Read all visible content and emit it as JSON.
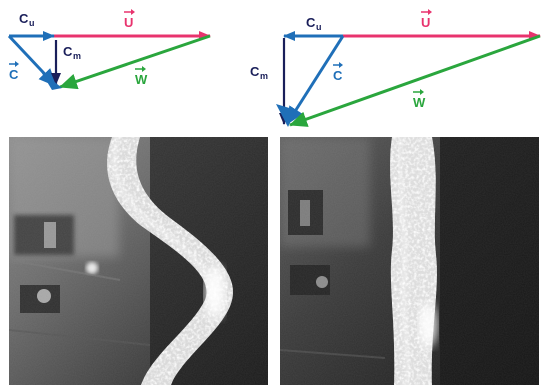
{
  "colors": {
    "u": "#e8336e",
    "c": "#1f6fb8",
    "w": "#2aa63d",
    "cm": "#1a1f5a"
  },
  "left_triangle": {
    "label_u": "U",
    "label_cu": "C",
    "label_cu_sub": "u",
    "label_cm": "C",
    "label_cm_sub": "m",
    "label_c": "C",
    "label_w": "W"
  },
  "right_triangle": {
    "label_u": "U",
    "label_cu": "C",
    "label_cu_sub": "u",
    "label_cm": "C",
    "label_cm_sub": "m",
    "label_c": "C",
    "label_w": "W"
  },
  "photos": [
    {
      "name": "vortex-rope-helical"
    },
    {
      "name": "vortex-rope-straight"
    }
  ]
}
